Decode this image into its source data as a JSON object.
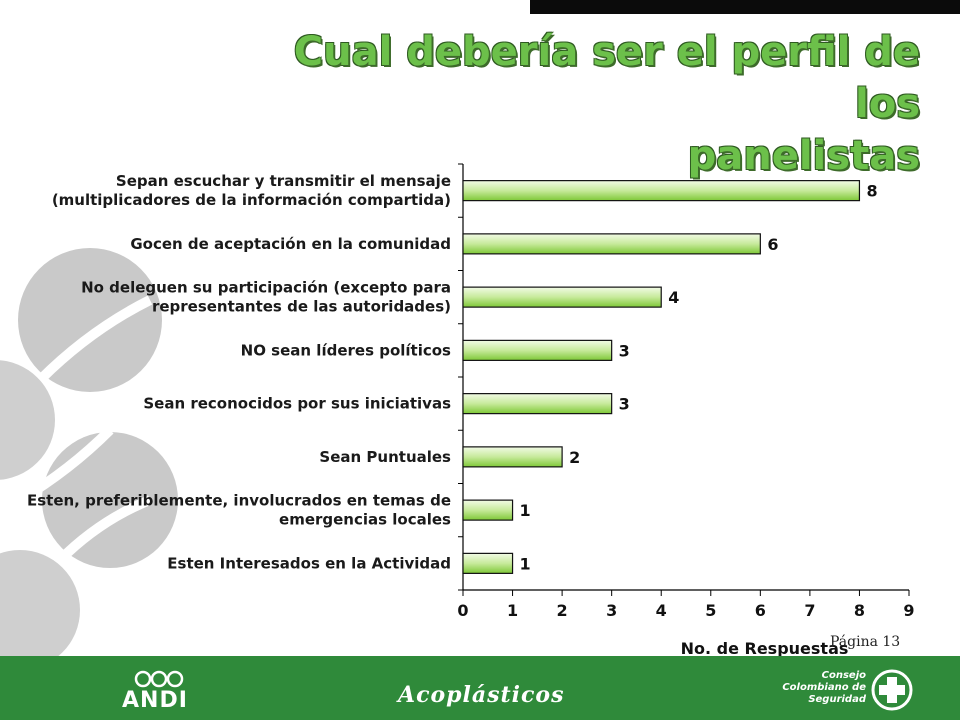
{
  "slide": {
    "title_line1": "Cual debería ser el perfil de los",
    "title_line2": "panelistas",
    "page_label": "Página 13"
  },
  "footer": {
    "andi": "ANDI",
    "acoplasticos": "Acoplásticos",
    "ccs_line1": "Consejo",
    "ccs_line2": "Colombiano de",
    "ccs_line3": "Seguridad"
  },
  "colors": {
    "bar_light": "#f2fbe6",
    "bar_dark": "#7ec837",
    "footer_green": "#2f8a3a",
    "title_green": "#6cc04a"
  },
  "chart_data": {
    "type": "bar",
    "orientation": "horizontal",
    "categories": [
      [
        "Sepan escuchar y transmitir el mensaje",
        "(multiplicadores de la información compartida)"
      ],
      [
        "Gocen de aceptación en la comunidad"
      ],
      [
        "No deleguen su participación (excepto para",
        "representantes de las autoridades)"
      ],
      [
        "NO sean líderes políticos"
      ],
      [
        "Sean reconocidos por sus iniciativas"
      ],
      [
        "Sean Puntuales"
      ],
      [
        "Esten, preferiblemente, involucrados en temas de",
        "emergencias locales"
      ],
      [
        "Esten Interesados en la Actividad"
      ]
    ],
    "values": [
      8,
      6,
      4,
      3,
      3,
      2,
      1,
      1
    ],
    "xlim": [
      0,
      9
    ],
    "xticks": [
      0,
      1,
      2,
      3,
      4,
      5,
      6,
      7,
      8,
      9
    ],
    "xlabel": "No. de Respuestas",
    "ylabel": "",
    "grid": false
  }
}
